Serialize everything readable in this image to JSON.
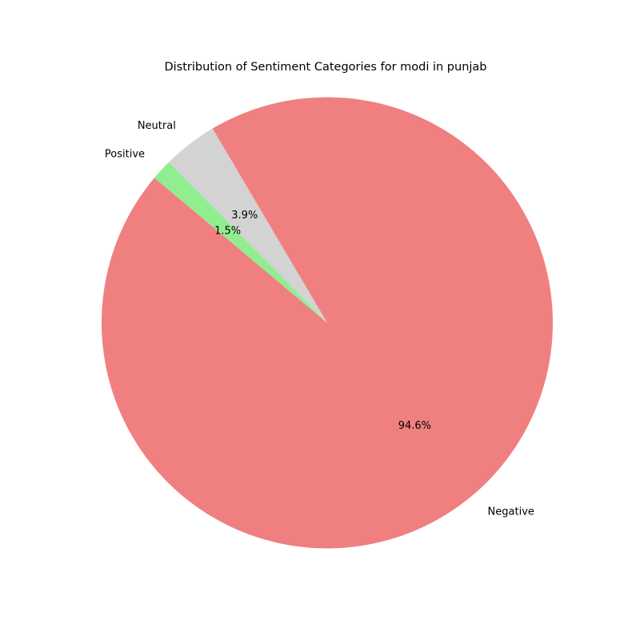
{
  "chart_data": {
    "type": "pie",
    "title": "Distribution of Sentiment Categories for modi in punjab",
    "slices": [
      {
        "label": "Negative",
        "value": 94.6,
        "pct_label": "94.6%",
        "color": "#f08080"
      },
      {
        "label": "Neutral",
        "value": 3.9,
        "pct_label": "3.9%",
        "color": "#d3d3d3"
      },
      {
        "label": "Positive",
        "value": 1.5,
        "pct_label": "1.5%",
        "color": "#90ee90"
      }
    ],
    "start_angle_deg": 140,
    "direction": "counterclockwise",
    "legend": "none"
  }
}
